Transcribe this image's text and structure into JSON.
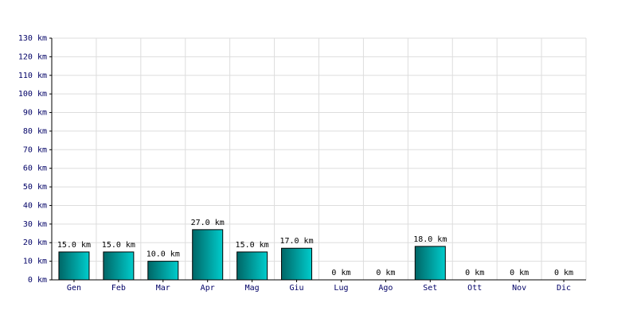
{
  "chart_data": {
    "type": "bar",
    "categories": [
      "Gen",
      "Feb",
      "Mar",
      "Apr",
      "Mag",
      "Giu",
      "Lug",
      "Ago",
      "Set",
      "Ott",
      "Nov",
      "Dic"
    ],
    "values": [
      15,
      15,
      10,
      27,
      15,
      17,
      0,
      0,
      18,
      0,
      0,
      0
    ],
    "value_labels": [
      "15.0 km",
      "15.0 km",
      "10.0 km",
      "27.0 km",
      "15.0 km",
      "17.0 km",
      "0 km",
      "0 km",
      "18.0 km",
      "0 km",
      "0 km",
      "0 km"
    ],
    "color": "#00cccc",
    "ylim": [
      0,
      130
    ],
    "yticks": [
      {
        "value": 0,
        "label": "0 km"
      },
      {
        "value": 10,
        "label": "10 km"
      },
      {
        "value": 20,
        "label": "20 km"
      },
      {
        "value": 30,
        "label": "30 km"
      },
      {
        "value": 40,
        "label": "40 km"
      },
      {
        "value": 50,
        "label": "50 km"
      },
      {
        "value": 60,
        "label": "60 km"
      },
      {
        "value": 70,
        "label": "70 km"
      },
      {
        "value": 80,
        "label": "80 km"
      },
      {
        "value": 90,
        "label": "90 km"
      },
      {
        "value": 100,
        "label": "100 km"
      },
      {
        "value": 110,
        "label": "110 km"
      },
      {
        "value": 120,
        "label": "120 km"
      },
      {
        "value": 130,
        "label": "130 km"
      }
    ],
    "grid": true
  }
}
